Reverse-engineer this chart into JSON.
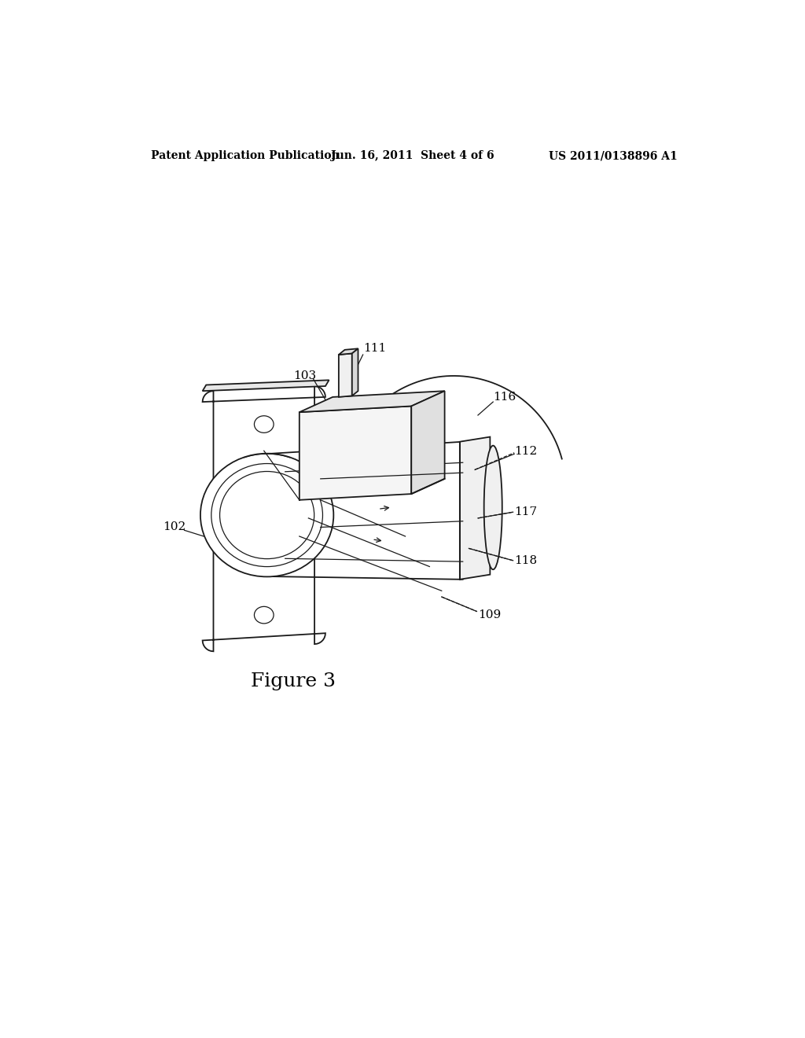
{
  "background_color": "#ffffff",
  "header_left": "Patent Application Publication",
  "header_center": "Jun. 16, 2011  Sheet 4 of 6",
  "header_right": "US 2011/0138896 A1",
  "figure_label": "Figure 3",
  "header_fontsize": 10,
  "label_fontsize": 11,
  "figure_label_fontsize": 18,
  "lc": "#1a1a1a",
  "lw": 1.3,
  "lw_thin": 0.9
}
